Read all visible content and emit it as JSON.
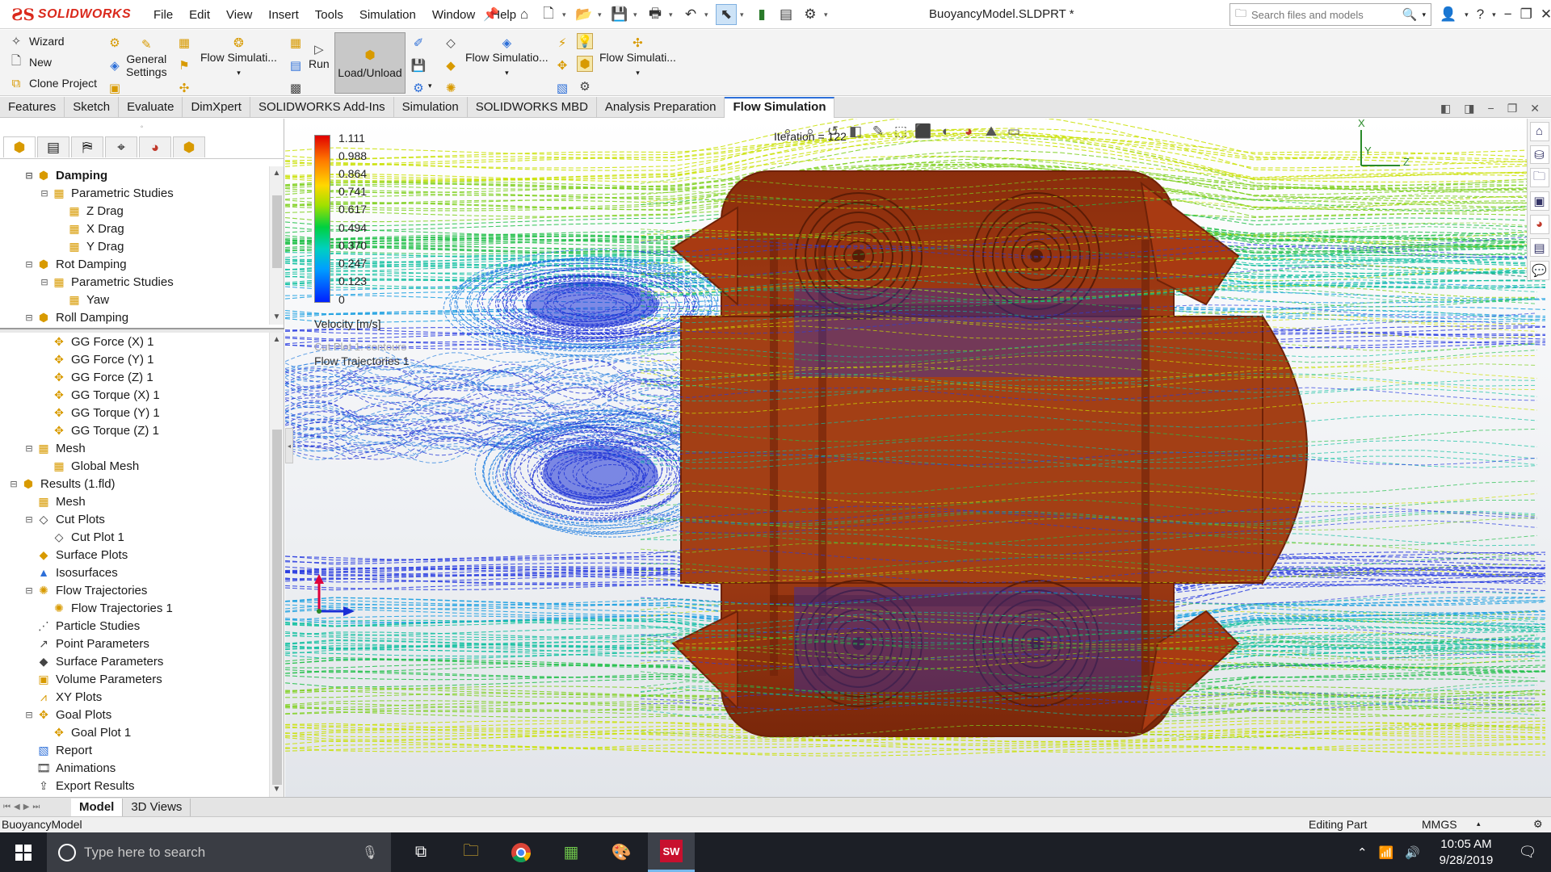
{
  "app": {
    "logo_text": "SOLIDWORKS",
    "menus": [
      "File",
      "Edit",
      "View",
      "Insert",
      "Tools",
      "Simulation",
      "Window",
      "Help"
    ],
    "document_title": "BuoyancyModel.SLDPRT *",
    "search_placeholder": "Search files and models"
  },
  "command_manager": {
    "wizard": "Wizard",
    "new": "New",
    "clone_project": "Clone Project",
    "general_settings_line1": "General",
    "general_settings_line2": "Settings",
    "flow_simulation_1": "Flow Simulati...",
    "run": "Run",
    "load_unload": "Load/Unload",
    "flow_simulation_2": "Flow Simulatio...",
    "flow_simulation_3": "Flow Simulati..."
  },
  "tabs": [
    {
      "label": "Features",
      "active": false
    },
    {
      "label": "Sketch",
      "active": false
    },
    {
      "label": "Evaluate",
      "active": false
    },
    {
      "label": "DimXpert",
      "active": false
    },
    {
      "label": "SOLIDWORKS Add-Ins",
      "active": false
    },
    {
      "label": "Simulation",
      "active": false
    },
    {
      "label": "SOLIDWORKS MBD",
      "active": false
    },
    {
      "label": "Analysis Preparation",
      "active": false
    },
    {
      "label": "Flow Simulation",
      "active": true
    }
  ],
  "tree_upper": [
    {
      "label": "Damping",
      "level": 1,
      "toggle": "−",
      "icon": "project-icon",
      "bold": true
    },
    {
      "label": "Parametric Studies",
      "level": 2,
      "toggle": "−",
      "icon": "parametric-icon"
    },
    {
      "label": "Z Drag",
      "level": 3,
      "toggle": "",
      "icon": "parametric-icon"
    },
    {
      "label": "X Drag",
      "level": 3,
      "toggle": "",
      "icon": "parametric-icon"
    },
    {
      "label": "Y Drag",
      "level": 3,
      "toggle": "",
      "icon": "parametric-icon"
    },
    {
      "label": "Rot Damping",
      "level": 1,
      "toggle": "−",
      "icon": "project-icon"
    },
    {
      "label": "Parametric Studies",
      "level": 2,
      "toggle": "−",
      "icon": "parametric-icon"
    },
    {
      "label": "Yaw",
      "level": 3,
      "toggle": "",
      "icon": "parametric-icon"
    },
    {
      "label": "Roll Damping",
      "level": 1,
      "toggle": "−",
      "icon": "project-icon"
    }
  ],
  "tree_lower": [
    {
      "label": "GG Force (X) 1",
      "level": 2,
      "toggle": "",
      "icon": "goal-icon"
    },
    {
      "label": "GG Force (Y) 1",
      "level": 2,
      "toggle": "",
      "icon": "goal-icon"
    },
    {
      "label": "GG Force (Z) 1",
      "level": 2,
      "toggle": "",
      "icon": "goal-icon"
    },
    {
      "label": "GG Torque (X) 1",
      "level": 2,
      "toggle": "",
      "icon": "goal-icon"
    },
    {
      "label": "GG Torque (Y) 1",
      "level": 2,
      "toggle": "",
      "icon": "goal-icon"
    },
    {
      "label": "GG Torque (Z) 1",
      "level": 2,
      "toggle": "",
      "icon": "goal-icon"
    },
    {
      "label": "Mesh",
      "level": 1,
      "toggle": "−",
      "icon": "mesh-icon"
    },
    {
      "label": "Global Mesh",
      "level": 2,
      "toggle": "",
      "icon": "mesh-icon"
    },
    {
      "label": "Results (1.fld)",
      "level": 0,
      "toggle": "−",
      "icon": "results-icon"
    },
    {
      "label": "Mesh",
      "level": 1,
      "toggle": "",
      "icon": "mesh-icon"
    },
    {
      "label": "Cut Plots",
      "level": 1,
      "toggle": "−",
      "icon": "cut-plot-icon"
    },
    {
      "label": "Cut Plot 1",
      "level": 2,
      "toggle": "",
      "icon": "cut-plot-icon"
    },
    {
      "label": "Surface Plots",
      "level": 1,
      "toggle": "",
      "icon": "surface-plot-icon"
    },
    {
      "label": "Isosurfaces",
      "level": 1,
      "toggle": "",
      "icon": "isosurface-icon"
    },
    {
      "label": "Flow Trajectories",
      "level": 1,
      "toggle": "−",
      "icon": "trajectory-icon"
    },
    {
      "label": "Flow Trajectories 1",
      "level": 2,
      "toggle": "",
      "icon": "trajectory-icon"
    },
    {
      "label": "Particle Studies",
      "level": 1,
      "toggle": "",
      "icon": "particle-icon"
    },
    {
      "label": "Point Parameters",
      "level": 1,
      "toggle": "",
      "icon": "point-icon"
    },
    {
      "label": "Surface Parameters",
      "level": 1,
      "toggle": "",
      "icon": "surface-param-icon"
    },
    {
      "label": "Volume Parameters",
      "level": 1,
      "toggle": "",
      "icon": "volume-icon"
    },
    {
      "label": "XY Plots",
      "level": 1,
      "toggle": "",
      "icon": "xy-plot-icon"
    },
    {
      "label": "Goal Plots",
      "level": 1,
      "toggle": "−",
      "icon": "goal-plot-icon"
    },
    {
      "label": "Goal Plot 1",
      "level": 2,
      "toggle": "",
      "icon": "goal-plot-icon"
    },
    {
      "label": "Report",
      "level": 1,
      "toggle": "",
      "icon": "report-icon"
    },
    {
      "label": "Animations",
      "level": 1,
      "toggle": "",
      "icon": "animation-icon"
    },
    {
      "label": "Export Results",
      "level": 1,
      "toggle": "",
      "icon": "export-icon"
    }
  ],
  "viewport": {
    "iteration": "Iteration = 122",
    "legend_ticks": [
      "1.111",
      "0.988",
      "0.864",
      "0.741",
      "0.617",
      "0.494",
      "0.370",
      "0.247",
      "0.123",
      "0"
    ],
    "legend_unit": "Velocity [m/s]",
    "cut_plot_label": "Cut Plot 1: contours",
    "trajectories_label": "Flow Trajectories 1",
    "triad_x": "X",
    "triad_y": "Y",
    "triad_z": "Z",
    "colors": {
      "body": "#a83a12",
      "body_dark": "#6e2208",
      "flow_low": "#1a2fd6",
      "flow_mid": "#1fc05a",
      "flow_high": "#c8e000"
    }
  },
  "model_tabs": [
    {
      "label": "Model",
      "active": true
    },
    {
      "label": "3D Views",
      "active": false
    }
  ],
  "status": {
    "part_name": "BuoyancyModel",
    "editing": "Editing Part",
    "units": "MMGS"
  },
  "taskbar": {
    "search_placeholder": "Type here to search",
    "time": "10:05 AM",
    "date": "9/28/2019"
  }
}
